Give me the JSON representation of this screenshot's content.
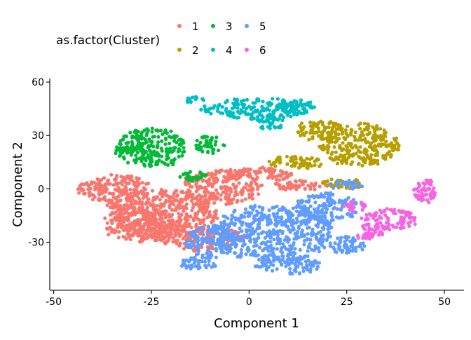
{
  "chart_data": {
    "type": "scatter",
    "title": "",
    "xlabel": "Component 1",
    "ylabel": "Component 2",
    "xlim": [
      -51,
      55
    ],
    "ylim": [
      -57,
      62
    ],
    "xticks": [
      -50,
      -25,
      0,
      25,
      50
    ],
    "xtick_labels": [
      "-50",
      "-25",
      "0",
      "25",
      "50"
    ],
    "yticks": [
      -30,
      0,
      30,
      60
    ],
    "ytick_labels": [
      "-30",
      "0",
      "30",
      "60"
    ],
    "grid": false,
    "legend": {
      "title": "as.factor(Cluster)",
      "placement": "top"
    },
    "series": [
      {
        "name": "1",
        "color": "#F8766D",
        "regions": [
          [
            -22,
            -14,
            14,
            14
          ],
          [
            -7,
            1,
            10,
            10
          ],
          [
            -33,
            -1,
            8,
            9
          ],
          [
            -28,
            -20,
            9,
            10
          ],
          [
            -12,
            -28,
            11,
            7
          ],
          [
            -40,
            0,
            4,
            4
          ],
          [
            3,
            8,
            8,
            4
          ],
          [
            13,
            2,
            7,
            3
          ]
        ]
      },
      {
        "name": "2",
        "color": "#B79F00",
        "regions": [
          [
            28,
            25,
            10,
            12
          ],
          [
            12,
            15,
            7,
            4
          ],
          [
            18,
            33,
            6,
            6
          ],
          [
            24,
            3,
            6,
            3
          ]
        ]
      },
      {
        "name": "3",
        "color": "#00BA38",
        "regions": [
          [
            -25,
            23,
            9,
            11
          ],
          [
            -30,
            24,
            4,
            3
          ],
          [
            -10,
            25,
            4,
            5
          ],
          [
            -14,
            7,
            4,
            3
          ]
        ]
      },
      {
        "name": "4",
        "color": "#00BFC4",
        "regions": [
          [
            2,
            45,
            14,
            6
          ],
          [
            -14,
            50,
            3,
            2
          ],
          [
            5,
            37,
            4,
            4
          ],
          [
            12,
            46,
            5,
            4
          ]
        ]
      },
      {
        "name": "5",
        "color": "#619CFF",
        "regions": [
          [
            6,
            -25,
            15,
            16
          ],
          [
            -10,
            -30,
            6,
            9
          ],
          [
            10,
            -43,
            8,
            5
          ],
          [
            20,
            -11,
            8,
            9
          ],
          [
            25,
            -31,
            5,
            5
          ],
          [
            25,
            2,
            4,
            3
          ],
          [
            -13,
            -42,
            5,
            4
          ]
        ]
      },
      {
        "name": "6",
        "color": "#F564E3",
        "regions": [
          [
            36,
            -17,
            7,
            6
          ],
          [
            45,
            -1,
            3,
            7
          ],
          [
            31,
            -24,
            4,
            5
          ],
          [
            46,
            4,
            2,
            2
          ],
          [
            27,
            -10,
            3,
            3
          ]
        ]
      }
    ]
  }
}
